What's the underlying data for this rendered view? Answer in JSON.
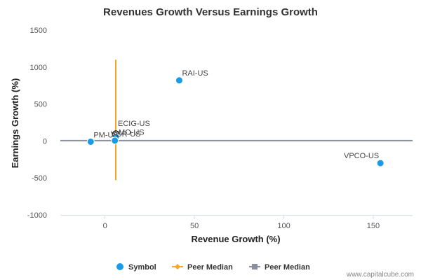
{
  "chart_data": {
    "type": "scatter",
    "title": "Revenues Growth Versus Earnings Growth",
    "xlabel": "Revenue Growth (%)",
    "ylabel": "Earnings Growth (%)",
    "xlim": [
      -25,
      172
    ],
    "ylim": [
      -1000,
      1500
    ],
    "x_ticks": [
      0,
      50,
      100,
      150
    ],
    "y_ticks": [
      -1000,
      -500,
      0,
      500,
      1000,
      1500
    ],
    "grid": false,
    "legend_position": "bottom",
    "points": [
      {
        "label": "RAI-US",
        "x": 41.5,
        "y": 820
      },
      {
        "label": "ECIG-US",
        "x": 6,
        "y": 100
      },
      {
        "label": "MO-US",
        "x": 6,
        "y": 55
      },
      {
        "label": "PM-US",
        "x": -8,
        "y": -10
      },
      {
        "label": "VGR-US",
        "x": 5.5,
        "y": 5
      },
      {
        "label": "VPCO-US",
        "x": 154,
        "y": -300
      }
    ],
    "peer_median_revenue": {
      "x": 6,
      "y_range": [
        -530,
        1100
      ]
    },
    "peer_median_earnings": {
      "y": 5
    },
    "legend": [
      {
        "name": "Symbol",
        "color": "#1a9be8",
        "marker": "circle"
      },
      {
        "name": "Peer Median",
        "color": "#f5a623",
        "marker": "diamond-line"
      },
      {
        "name": "Peer Median",
        "color": "#8a8fa0",
        "marker": "square-line"
      }
    ],
    "credit": "www.capitalcube.com"
  }
}
